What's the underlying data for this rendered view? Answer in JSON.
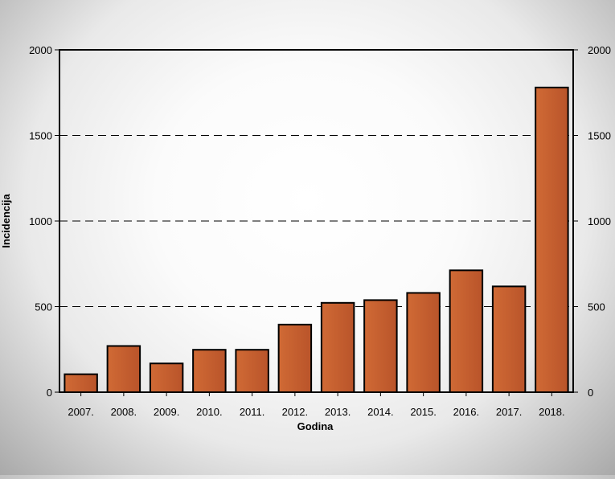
{
  "chart_data": {
    "type": "bar",
    "title": "",
    "xlabel": "Godina",
    "ylabel": "Incidencija",
    "categories": [
      "2007.",
      "2008.",
      "2009.",
      "2010.",
      "2011.",
      "2012.",
      "2013.",
      "2014.",
      "2015.",
      "2016.",
      "2017.",
      "2018."
    ],
    "values": [
      105,
      270,
      168,
      248,
      248,
      395,
      522,
      538,
      580,
      712,
      618,
      1780
    ],
    "ylim": [
      0,
      2000
    ],
    "yticks": [
      0,
      500,
      1000,
      1500,
      2000
    ],
    "right_axis_ticks": true,
    "grid": "horizontal dashed at 500, 1000, 1500",
    "legend": "none",
    "bar_color": "#c75f2c",
    "bar_edge_color": "#000000"
  }
}
